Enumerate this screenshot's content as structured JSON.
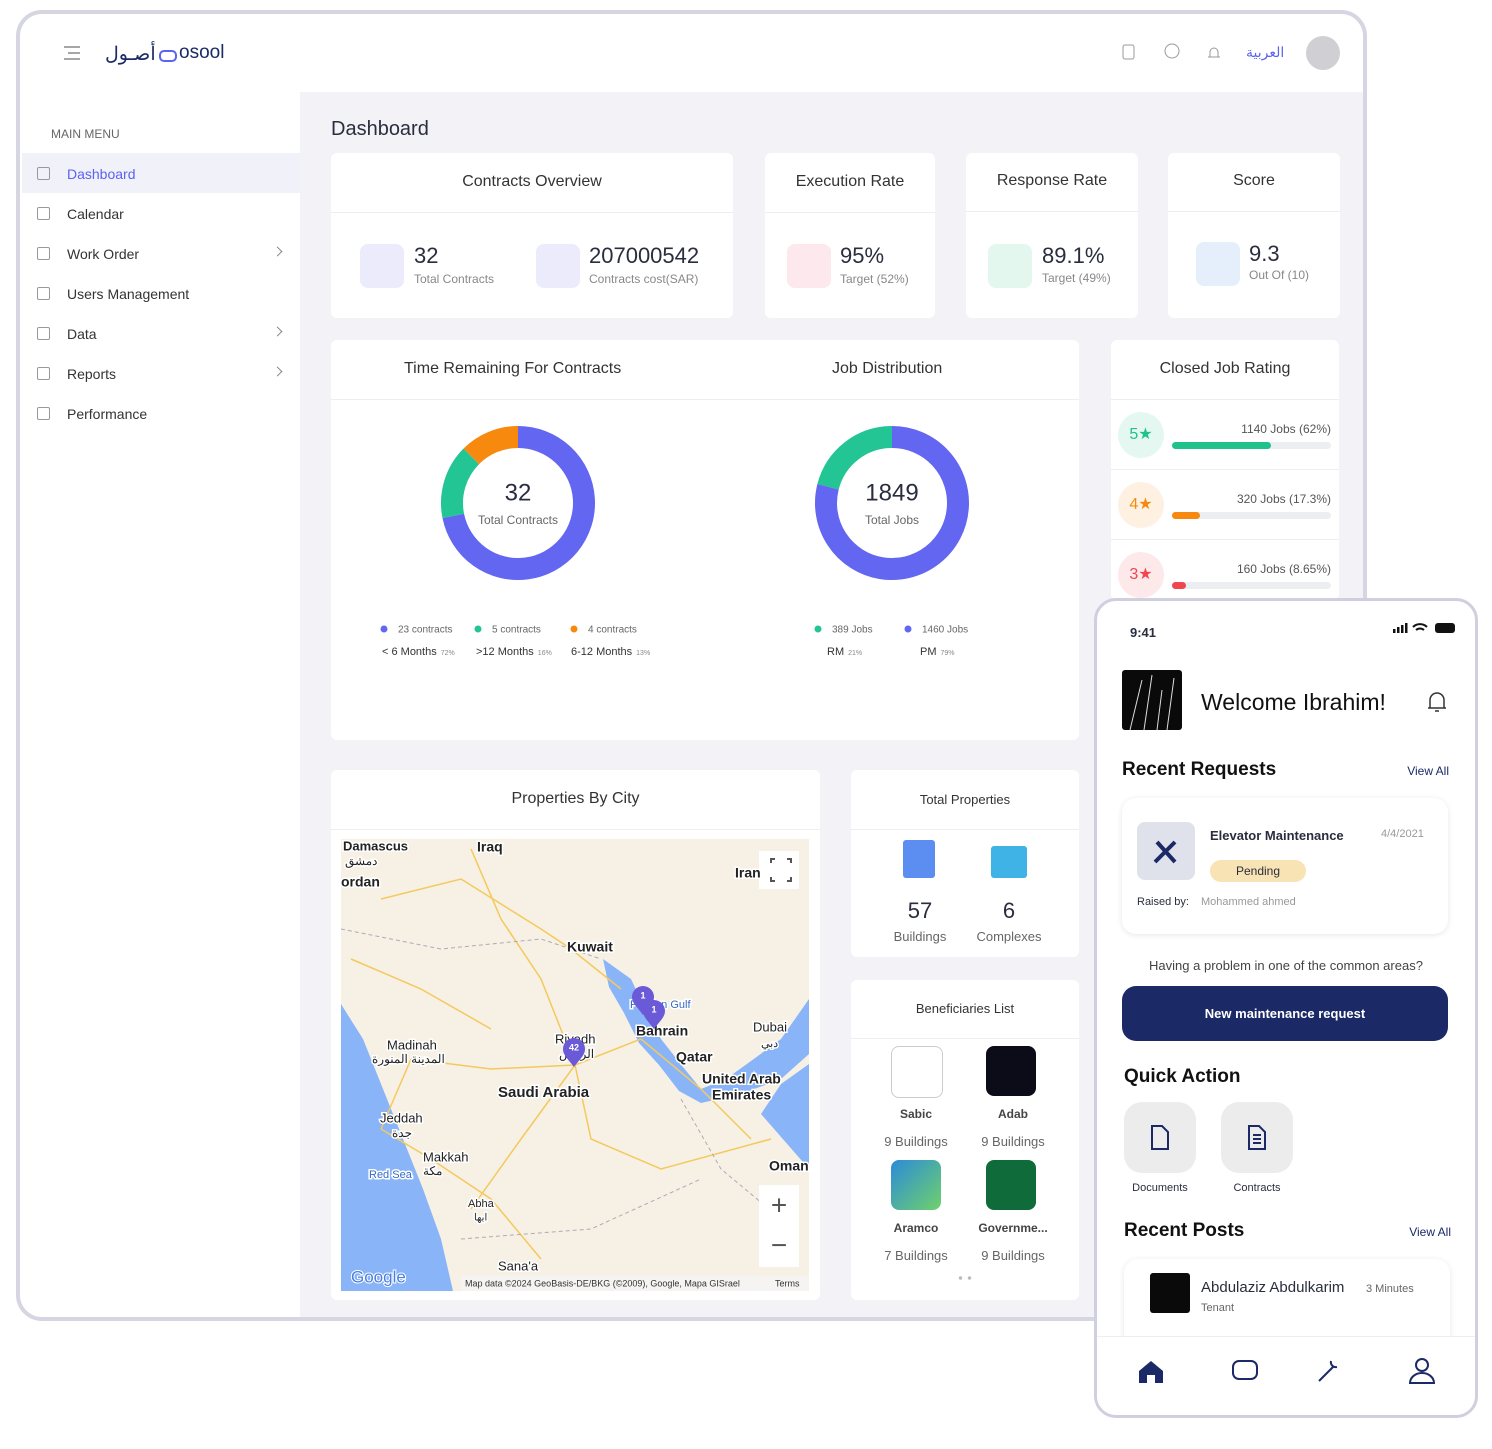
{
  "header": {
    "logo_arabic": "أصـول",
    "logo_text": "osool",
    "language": "العربية"
  },
  "sidebar": {
    "section": "MAIN MENU",
    "items": [
      "Dashboard",
      "Calendar",
      "Work Order",
      "Users Management",
      "Data",
      "Reports",
      "Performance"
    ]
  },
  "dashboard": {
    "title": "Dashboard",
    "contracts_overview": {
      "title": "Contracts Overview",
      "total": "32",
      "total_label": "Total Contracts",
      "cost": "207000542",
      "cost_label": "Contracts cost(SAR)"
    },
    "execution_rate": {
      "title": "Execution Rate",
      "value": "95%",
      "sub": "Target (52%)"
    },
    "response_rate": {
      "title": "Response Rate",
      "value": "89.1%",
      "sub": "Target (49%)"
    },
    "score": {
      "title": "Score",
      "value": "9.3",
      "sub": "Out Of (10)"
    },
    "time_remaining": {
      "title": "Time Remaining For Contracts",
      "center_value": "32",
      "center_label": "Total Contracts",
      "segments": [
        {
          "value": 23,
          "value_label": "23 contracts",
          "name": "< 6 Months",
          "share": "72%",
          "color": "#6366f1"
        },
        {
          "value": 5,
          "value_label": "5 contracts",
          "name": ">12 Months",
          "share": "16%",
          "color": "#22c593"
        },
        {
          "value": 4,
          "value_label": "4 contracts",
          "name": "6-12 Months",
          "share": "13%",
          "color": "#f7890f"
        }
      ]
    },
    "job_distribution": {
      "title": "Job Distribution",
      "center_value": "1849",
      "center_label": "Total Jobs",
      "segments": [
        {
          "value": 389,
          "value_label": "389 Jobs",
          "name": "RM",
          "share": "21%",
          "color": "#22c593"
        },
        {
          "value": 1460,
          "value_label": "1460 Jobs",
          "name": "PM",
          "share": "79%",
          "color": "#6366f1"
        }
      ]
    },
    "closed_job_rating": {
      "title": "Closed Job Rating",
      "items": [
        {
          "stars": "5★",
          "label": "1140 Jobs (62%)",
          "percent": 62,
          "color": "#1fc28a"
        },
        {
          "stars": "4★",
          "label": "320 Jobs (17.3%)",
          "percent": 17.3,
          "color": "#f7890f"
        },
        {
          "stars": "3★",
          "label": "160 Jobs (8.65%)",
          "percent": 8.65,
          "color": "#f0464f"
        }
      ]
    },
    "properties_by_city": {
      "title": "Properties By City",
      "labels": [
        "Damascus",
        "دمشق",
        "ordan",
        "Iraq",
        "Iran",
        "Kuwait",
        "Persian Gulf",
        "Bahrain",
        "Dubai",
        "دبي",
        "Qatar",
        "United Arab",
        "Emirates",
        "Madinah",
        "المدينة المنورة",
        "Riyadh",
        "الرياض",
        "Saudi Arabia",
        "Jeddah",
        "جدة",
        "Makkah",
        "مكة",
        "Red Sea",
        "Abha",
        "ابها",
        "Oman",
        "Sana'a"
      ],
      "markers": [
        "1",
        "1",
        "42"
      ],
      "brand": "Google",
      "attribution": "Map data ©2024 GeoBasis-DE/BKG (©2009), Google, Mapa GISrael",
      "terms": "Terms",
      "zoom_in": "+",
      "zoom_out": "−"
    },
    "total_properties": {
      "title": "Total Properties",
      "items": [
        {
          "count": "57",
          "label": "Buildings"
        },
        {
          "count": "6",
          "label": "Complexes"
        }
      ]
    },
    "beneficiaries": {
      "title": "Beneficiaries List",
      "items": [
        {
          "name": "Sabic",
          "buildings": "9 Buildings"
        },
        {
          "name": "Adab",
          "buildings": "9 Buildings"
        },
        {
          "name": "Aramco",
          "buildings": "7 Buildings"
        },
        {
          "name": "Governme...",
          "buildings": "9 Buildings"
        }
      ]
    }
  },
  "phone": {
    "time": "9:41",
    "welcome": "Welcome Ibrahim!",
    "recent_requests": "Recent Requests",
    "view_all": "View All",
    "request": {
      "title": "Elevator Maintenance",
      "date": "4/4/2021",
      "status": "Pending",
      "raised_by": "Raised by:",
      "raiser": "Mohammed ahmed"
    },
    "prompt": "Having a problem in one of the common areas?",
    "button": "New maintenance request",
    "quick_action": "Quick Action",
    "actions": [
      "Documents",
      "Contracts"
    ],
    "recent_posts": "Recent Posts",
    "view_all_posts": "View All",
    "post": {
      "author": "Abdulaziz Abdulkarim",
      "time": "3 Minutes",
      "role": "Tenant"
    }
  }
}
